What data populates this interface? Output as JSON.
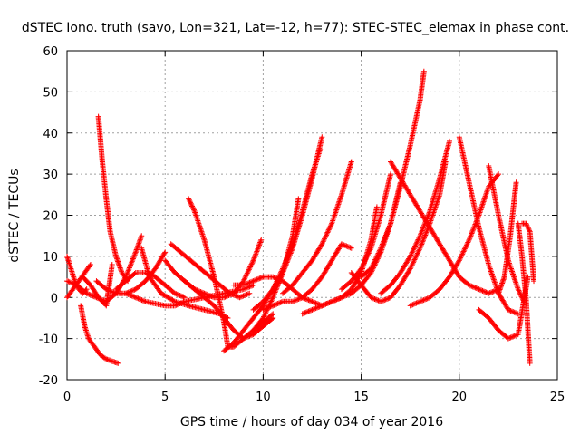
{
  "chart_data": {
    "type": "scatter",
    "title": "dSTEC Iono. truth (savo, Lon=321, Lat=-12, h=77): STEC-STEC_elemax in phase cont.",
    "xlabel": "GPS time / hours of day 034 of year 2016",
    "ylabel": "dSTEC  / TECUs",
    "xlim": [
      0,
      25
    ],
    "ylim": [
      -20,
      60
    ],
    "xticks": [
      "0",
      "5",
      "10",
      "15",
      "20",
      "25"
    ],
    "yticks": [
      "-20",
      "-10",
      "0",
      "10",
      "20",
      "30",
      "40",
      "50",
      "60"
    ],
    "grid": true,
    "legend": "none",
    "marker": "plus",
    "color": "#ff0000",
    "series": [
      {
        "x": [
          0.0,
          0.2,
          0.4,
          0.6,
          0.8,
          1.0
        ],
        "y": [
          10,
          7,
          4,
          2,
          1,
          2
        ]
      },
      {
        "x": [
          0.7,
          0.9,
          1.1,
          1.4,
          1.7,
          2.0,
          2.3,
          2.6
        ],
        "y": [
          -2,
          -7,
          -10,
          -12,
          -14,
          -15,
          -15.5,
          -16
        ]
      },
      {
        "x": [
          1.6,
          1.8,
          2.0,
          2.2,
          2.5,
          2.8,
          3.1
        ],
        "y": [
          44,
          33,
          24,
          16,
          10,
          6,
          4
        ]
      },
      {
        "x": [
          0.0,
          0.3,
          0.6,
          0.9,
          1.2
        ],
        "y": [
          0,
          2,
          4,
          6,
          8
        ]
      },
      {
        "x": [
          0.0,
          0.5,
          1.0,
          1.5,
          2.0,
          2.5,
          3.0,
          3.5,
          3.8
        ],
        "y": [
          4,
          3,
          1,
          0,
          -1,
          1,
          5,
          11,
          15
        ]
      },
      {
        "x": [
          0.8,
          1.2,
          1.6,
          2.0,
          2.3
        ],
        "y": [
          5,
          3,
          0,
          -2,
          8
        ]
      },
      {
        "x": [
          1.5,
          2.0,
          2.5,
          3.0,
          3.5,
          4.0,
          4.5,
          5.0
        ],
        "y": [
          4,
          2,
          1,
          1,
          2,
          4,
          7,
          11
        ]
      },
      {
        "x": [
          2.5,
          3.0,
          3.5,
          4.0,
          4.5,
          5.0,
          5.5,
          6.0
        ],
        "y": [
          2,
          4,
          6,
          6,
          5,
          3,
          1,
          0
        ]
      },
      {
        "x": [
          3.0,
          3.5,
          4.0,
          4.5,
          5.0,
          5.5,
          6.0,
          7.0,
          8.0,
          9.0,
          9.5
        ],
        "y": [
          1,
          0,
          -1,
          -1.5,
          -2,
          -2,
          -1,
          0,
          1,
          2,
          3
        ]
      },
      {
        "x": [
          3.8,
          4.2,
          4.8,
          5.5,
          6.2,
          7.0,
          7.8,
          8.2
        ],
        "y": [
          12,
          5,
          1,
          -1,
          -2,
          -3,
          -4,
          -5
        ]
      },
      {
        "x": [
          5.0,
          5.5,
          6.0,
          6.5,
          7.0,
          7.5,
          8.0,
          8.5,
          9.0,
          9.5,
          9.9
        ],
        "y": [
          9,
          6,
          4,
          2,
          1,
          0,
          0,
          1,
          4,
          9,
          14
        ]
      },
      {
        "x": [
          6.2,
          6.5,
          7.0,
          7.5,
          8.0,
          8.2,
          8.5,
          9.0,
          9.5,
          10.0,
          10.5
        ],
        "y": [
          24,
          21,
          14,
          5,
          -6,
          -12,
          -12,
          -10,
          -8,
          -6,
          -4
        ]
      },
      {
        "x": [
          5.3,
          5.8,
          6.3,
          6.8,
          7.3,
          7.8,
          8.3,
          8.8,
          9.3
        ],
        "y": [
          13,
          11,
          9,
          7,
          5,
          3,
          1,
          0,
          1
        ]
      },
      {
        "x": [
          6.0,
          6.5,
          7.0,
          7.5,
          8.0,
          8.5,
          9.0,
          9.5,
          10.0,
          10.5
        ],
        "y": [
          4,
          2,
          0,
          -2,
          -5,
          -8,
          -10,
          -9,
          -7,
          -5
        ]
      },
      {
        "x": [
          8.5,
          9.0,
          9.5,
          10.0,
          10.5,
          11.0,
          11.5,
          12.0,
          12.5,
          13.0,
          13.5,
          14.0,
          14.5,
          15.0,
          15.5,
          15.8
        ],
        "y": [
          3,
          3,
          4,
          5,
          5,
          4,
          2,
          0,
          -1,
          -2,
          -1,
          0,
          2,
          6,
          14,
          22
        ]
      },
      {
        "x": [
          9.5,
          10.0,
          10.5,
          11.0,
          11.5,
          11.8
        ],
        "y": [
          -8,
          -5,
          0,
          6,
          15,
          24
        ]
      },
      {
        "x": [
          8.0,
          8.5,
          9.0,
          9.5,
          10.0,
          10.5,
          11.0,
          11.5,
          12.0,
          12.5,
          12.9
        ],
        "y": [
          -13,
          -11,
          -8,
          -5,
          -2,
          2,
          7,
          13,
          21,
          30,
          36
        ]
      },
      {
        "x": [
          9.5,
          10.0,
          10.5,
          11.0,
          11.5,
          12.0,
          12.5,
          13.0
        ],
        "y": [
          -3,
          -1,
          2,
          6,
          12,
          20,
          29,
          39
        ]
      },
      {
        "x": [
          11.0,
          11.5,
          12.0,
          12.5,
          13.0,
          13.5,
          14.0,
          14.5
        ],
        "y": [
          1,
          3,
          6,
          9,
          13,
          18,
          25,
          33
        ]
      },
      {
        "x": [
          10.0,
          10.5,
          11.0,
          11.5,
          12.0,
          12.5,
          13.0,
          13.5,
          14.0,
          14.5
        ],
        "y": [
          -3,
          -2,
          -1,
          -1,
          0,
          2,
          5,
          9,
          13,
          12
        ]
      },
      {
        "x": [
          12.0,
          12.5,
          13.0,
          13.5,
          14.0,
          14.5,
          15.0,
          15.5,
          16.0,
          16.5,
          17.0
        ],
        "y": [
          -4,
          -3,
          -2,
          -1,
          0,
          1,
          3,
          6,
          11,
          18,
          28
        ]
      },
      {
        "x": [
          14.0,
          14.5,
          15.0,
          15.5,
          16.0,
          16.5
        ],
        "y": [
          2,
          4,
          7,
          12,
          20,
          30
        ]
      },
      {
        "x": [
          15.0,
          15.5,
          16.0,
          16.5,
          17.0,
          17.5,
          18.0,
          18.2
        ],
        "y": [
          5,
          7,
          12,
          18,
          27,
          37,
          48,
          55
        ]
      },
      {
        "x": [
          14.5,
          15.0,
          15.5,
          16.0,
          16.5,
          17.0,
          17.5,
          18.0,
          18.5,
          19.0,
          19.3
        ],
        "y": [
          6,
          3,
          0,
          -1,
          0,
          3,
          7,
          12,
          18,
          25,
          33
        ]
      },
      {
        "x": [
          16.0,
          16.5,
          17.0,
          17.5,
          18.0,
          18.5,
          19.0,
          19.5
        ],
        "y": [
          1,
          3,
          6,
          10,
          15,
          21,
          29,
          38
        ]
      },
      {
        "x": [
          16.5,
          17.0,
          17.5,
          18.0,
          18.5,
          19.0,
          19.5,
          20.0,
          20.5,
          21.0,
          21.5,
          22.0
        ],
        "y": [
          33,
          29,
          25,
          21,
          17,
          13,
          9,
          5,
          3,
          2,
          1,
          2
        ]
      },
      {
        "x": [
          17.5,
          18.0,
          18.5,
          19.0,
          19.5,
          20.0,
          20.5,
          21.0,
          21.5,
          22.0
        ],
        "y": [
          -2,
          -1,
          0,
          2,
          5,
          9,
          14,
          20,
          27,
          30
        ]
      },
      {
        "x": [
          20.0,
          20.5,
          21.0,
          21.5,
          22.0,
          22.5,
          23.0
        ],
        "y": [
          39,
          28,
          17,
          8,
          1,
          -3,
          -4
        ]
      },
      {
        "x": [
          21.5,
          22.0,
          22.5,
          23.0,
          23.3
        ],
        "y": [
          32,
          20,
          9,
          2,
          -1
        ]
      },
      {
        "x": [
          21.0,
          21.5,
          22.0,
          22.5,
          23.0,
          23.5
        ],
        "y": [
          -3,
          -5,
          -8,
          -10,
          -9,
          5
        ]
      },
      {
        "x": [
          22.0,
          22.3,
          22.6,
          22.9
        ],
        "y": [
          1,
          5,
          15,
          28
        ]
      },
      {
        "x": [
          23.0,
          23.2,
          23.4,
          23.6
        ],
        "y": [
          18,
          10,
          0,
          -16
        ]
      },
      {
        "x": [
          23.2,
          23.4,
          23.6,
          23.8
        ],
        "y": [
          18,
          18,
          16,
          4
        ]
      }
    ]
  }
}
